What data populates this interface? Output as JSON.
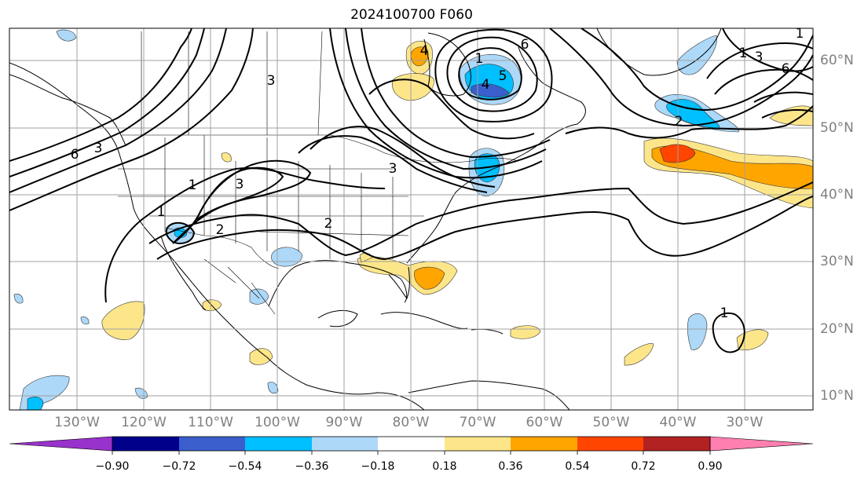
{
  "title": "2024100700 F060",
  "map": {
    "grid_color": "#a0a0a0",
    "contour_color": "#000000",
    "lon_labels": [
      "130°W",
      "120°W",
      "110°W",
      "100°W",
      "90°W",
      "80°W",
      "70°W",
      "60°W",
      "50°W",
      "40°W",
      "30°W"
    ],
    "lat_labels": [
      "60°N",
      "50°N",
      "40°N",
      "30°N",
      "20°N",
      "10°N"
    ],
    "contour_labels": [
      "6",
      "3",
      "1",
      "3",
      "2",
      "1",
      "2",
      "3",
      "3",
      "5",
      "4",
      "1",
      "4",
      "6",
      "1",
      "1",
      "3",
      "2",
      "6",
      "1"
    ]
  },
  "colorbar": {
    "ticks": [
      "−0.90",
      "−0.72",
      "−0.54",
      "−0.36",
      "−0.18",
      "0.18",
      "0.36",
      "0.54",
      "0.72",
      "0.90"
    ],
    "colors": [
      "#9932cc",
      "#00008b",
      "#3a5fcd",
      "#00bfff",
      "#add8f8",
      "#ffffff",
      "#fde68a",
      "#ffa500",
      "#ff4500",
      "#b22222",
      "#ff80b0"
    ]
  }
}
